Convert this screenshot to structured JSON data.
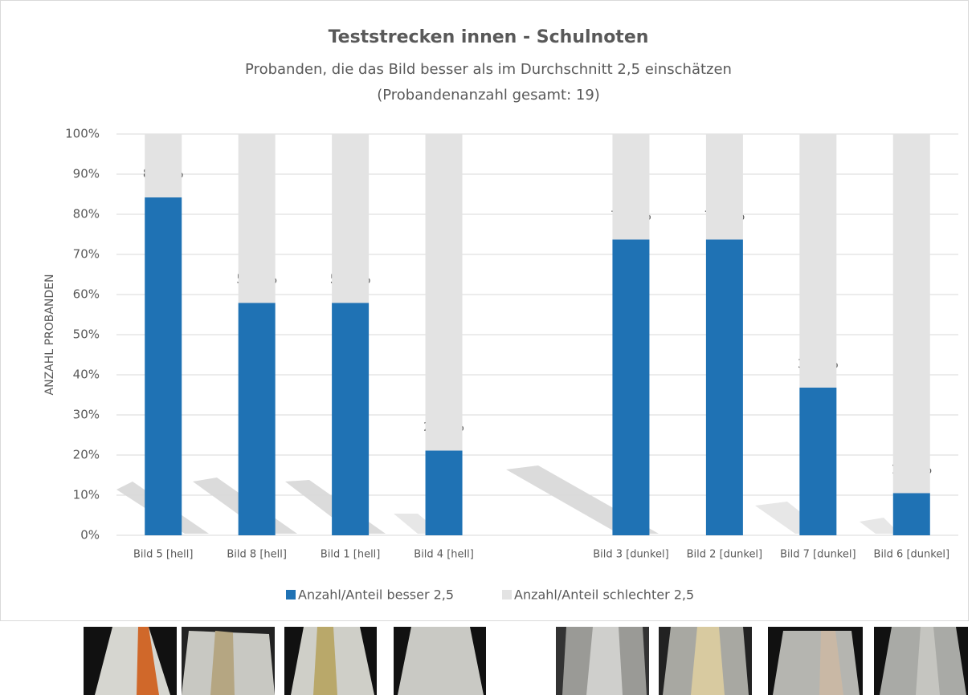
{
  "chart_data": {
    "type": "stacked_bar",
    "title": "Teststrecken innen - Schulnoten",
    "subtitle": [
      "Probanden, die das Bild besser als im Durchschnitt 2,5 einschätzen",
      "(Probandenanzahl gesamt: 19)"
    ],
    "y_label": "ANZAHL PROBANDEN",
    "categories": [
      "Bild 5 [hell]",
      "Bild 8 [hell]",
      "Bild 1 [hell]",
      "Bild 4 [hell]",
      null,
      "Bild 3 [dunkel]",
      "Bild 2 [dunkel]",
      "Bild 7 [dunkel]",
      "Bild 6 [dunkel]"
    ],
    "series": [
      {
        "name": "Anzahl/Anteil besser 2,5",
        "color": "#1f72b4",
        "values": [
          84.2,
          57.9,
          57.9,
          21.1,
          null,
          73.7,
          73.7,
          36.8,
          10.5
        ],
        "value_labels": [
          "84,2%",
          "57,9%",
          "57,9%",
          "21,1%",
          null,
          "73,7%",
          "73,7%",
          "36,8%",
          "10,5%"
        ]
      },
      {
        "name": "Anzahl/Anteil schlechter 2,5",
        "color": "#e3e3e3",
        "values": [
          15.8,
          42.1,
          42.1,
          78.9,
          null,
          26.3,
          26.3,
          63.2,
          89.5
        ]
      }
    ],
    "ylim": [
      0,
      100
    ],
    "yticks": [
      {
        "value": 0,
        "label": "0%"
      },
      {
        "value": 10,
        "label": "10%"
      },
      {
        "value": 20,
        "label": "20%"
      },
      {
        "value": 30,
        "label": "30%"
      },
      {
        "value": 40,
        "label": "40%"
      },
      {
        "value": 50,
        "label": "50%"
      },
      {
        "value": 60,
        "label": "60%"
      },
      {
        "value": 70,
        "label": "70%"
      },
      {
        "value": 80,
        "label": "80%"
      },
      {
        "value": 90,
        "label": "90%"
      },
      {
        "value": 100,
        "label": "100%"
      }
    ],
    "grid": true,
    "legend": "bottom"
  }
}
